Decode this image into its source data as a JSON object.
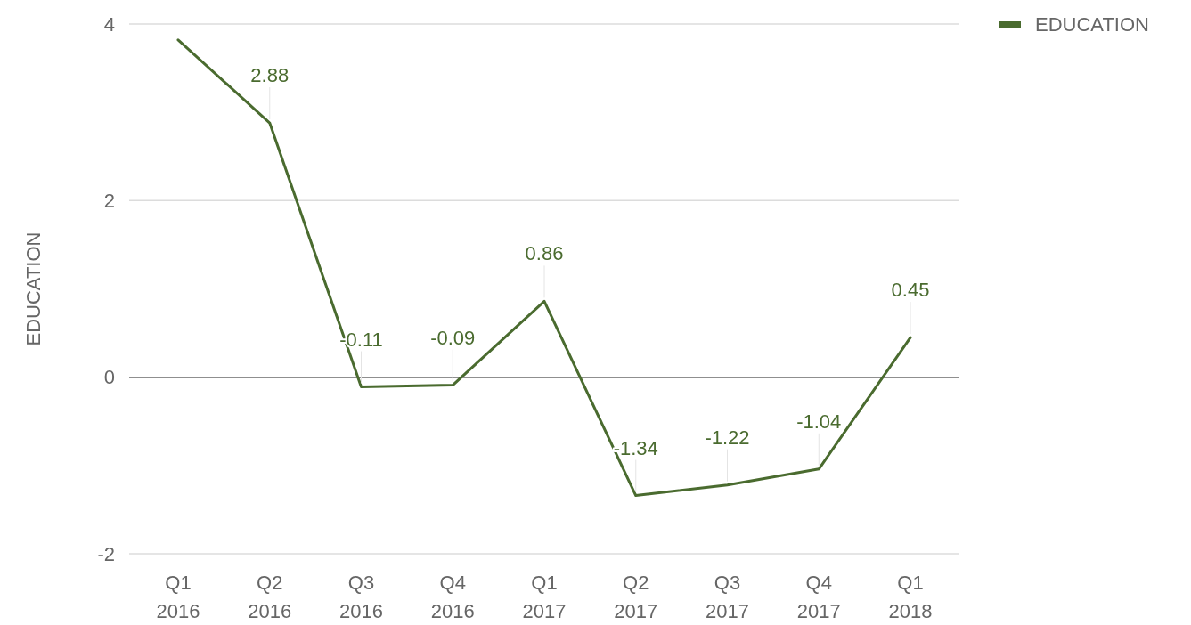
{
  "chart_data": {
    "type": "line",
    "ylabel": "EDUCATION",
    "categories": [
      "Q1 2016",
      "Q2 2016",
      "Q3 2016",
      "Q4 2016",
      "Q1 2017",
      "Q2 2017",
      "Q3 2017",
      "Q4 2017",
      "Q1 2018"
    ],
    "series": [
      {
        "name": "EDUCATION",
        "color": "#4a6b2f",
        "values": [
          3.82,
          2.88,
          -0.11,
          -0.09,
          0.86,
          -1.34,
          -1.22,
          -1.04,
          0.45
        ],
        "value_labels": [
          null,
          "2.88",
          "-0.11",
          "-0.09",
          "0.86",
          "-1.34",
          "-1.22",
          "-1.04",
          "0.45"
        ]
      }
    ],
    "ylim": [
      -2,
      4
    ],
    "yticks": [
      -2,
      0,
      2,
      4
    ],
    "grid": "y",
    "legend": "top right",
    "marker": "none",
    "line_style": "solid"
  }
}
